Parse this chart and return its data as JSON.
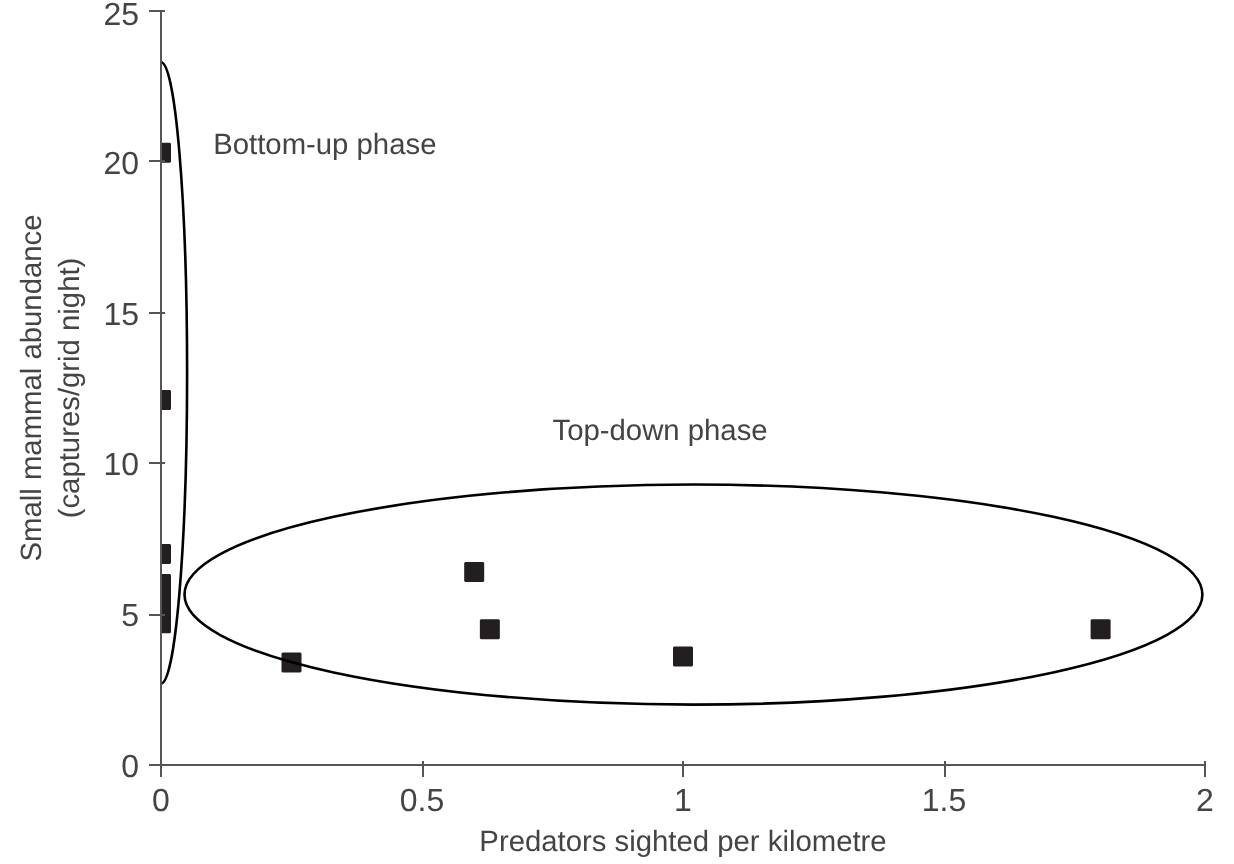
{
  "chart_data": {
    "type": "scatter",
    "xlabel": "Predators sighted per kilometre",
    "ylabel": "Small mammal abundance\n(captures/grid night)",
    "x": [
      0,
      0,
      0,
      0,
      0,
      0,
      0,
      0.25,
      0.6,
      0.63,
      1.0,
      1.8
    ],
    "values": [
      20.3,
      12.1,
      7.0,
      6.0,
      5.6,
      5.2,
      4.7,
      3.4,
      6.4,
      4.5,
      3.6,
      4.5
    ],
    "color": "#231f20",
    "marker": "square",
    "xlim": [
      0,
      2
    ],
    "ylim": [
      0,
      25
    ],
    "xticks": [
      0,
      0.5,
      1,
      1.5,
      2
    ],
    "yticks": [
      0,
      5,
      10,
      15,
      20,
      25
    ],
    "grid": false,
    "annotations": [
      "Bottom-up phase",
      "Top-down phase"
    ]
  }
}
